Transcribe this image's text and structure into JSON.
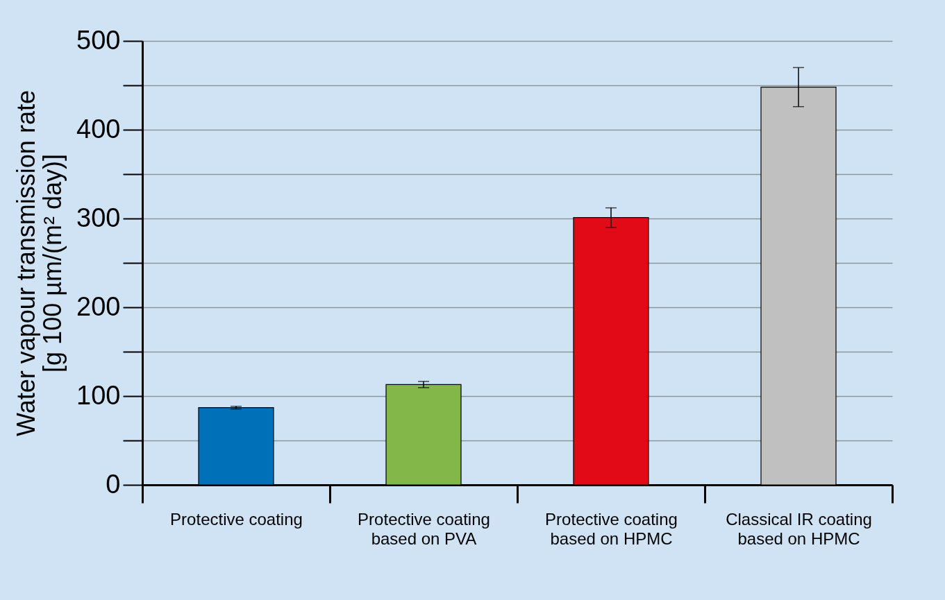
{
  "chart_data": {
    "type": "bar",
    "ylabel": "Water vapour transmission rate\n[g 100 µm/(m² day)]",
    "categories": [
      "Protective coating",
      "Protective coating based on PVA",
      "Protective coating based on HPMC",
      "Classical IR coating based on HPMC"
    ],
    "values": [
      87,
      113,
      301,
      448
    ],
    "errors": [
      1.5,
      3.5,
      11,
      22
    ],
    "colors": [
      "#0070b8",
      "#84b74a",
      "#e20a17",
      "#c0c0c0"
    ],
    "ylim": [
      0,
      500
    ],
    "yticks": [
      0,
      {
        "value": 50,
        "label": null
      },
      100,
      {
        "value": 150,
        "label": null
      },
      200,
      {
        "value": 250,
        "label": null
      },
      300,
      {
        "value": 350,
        "label": null
      },
      400,
      {
        "value": 450,
        "label": null
      },
      500
    ],
    "grid": true
  }
}
